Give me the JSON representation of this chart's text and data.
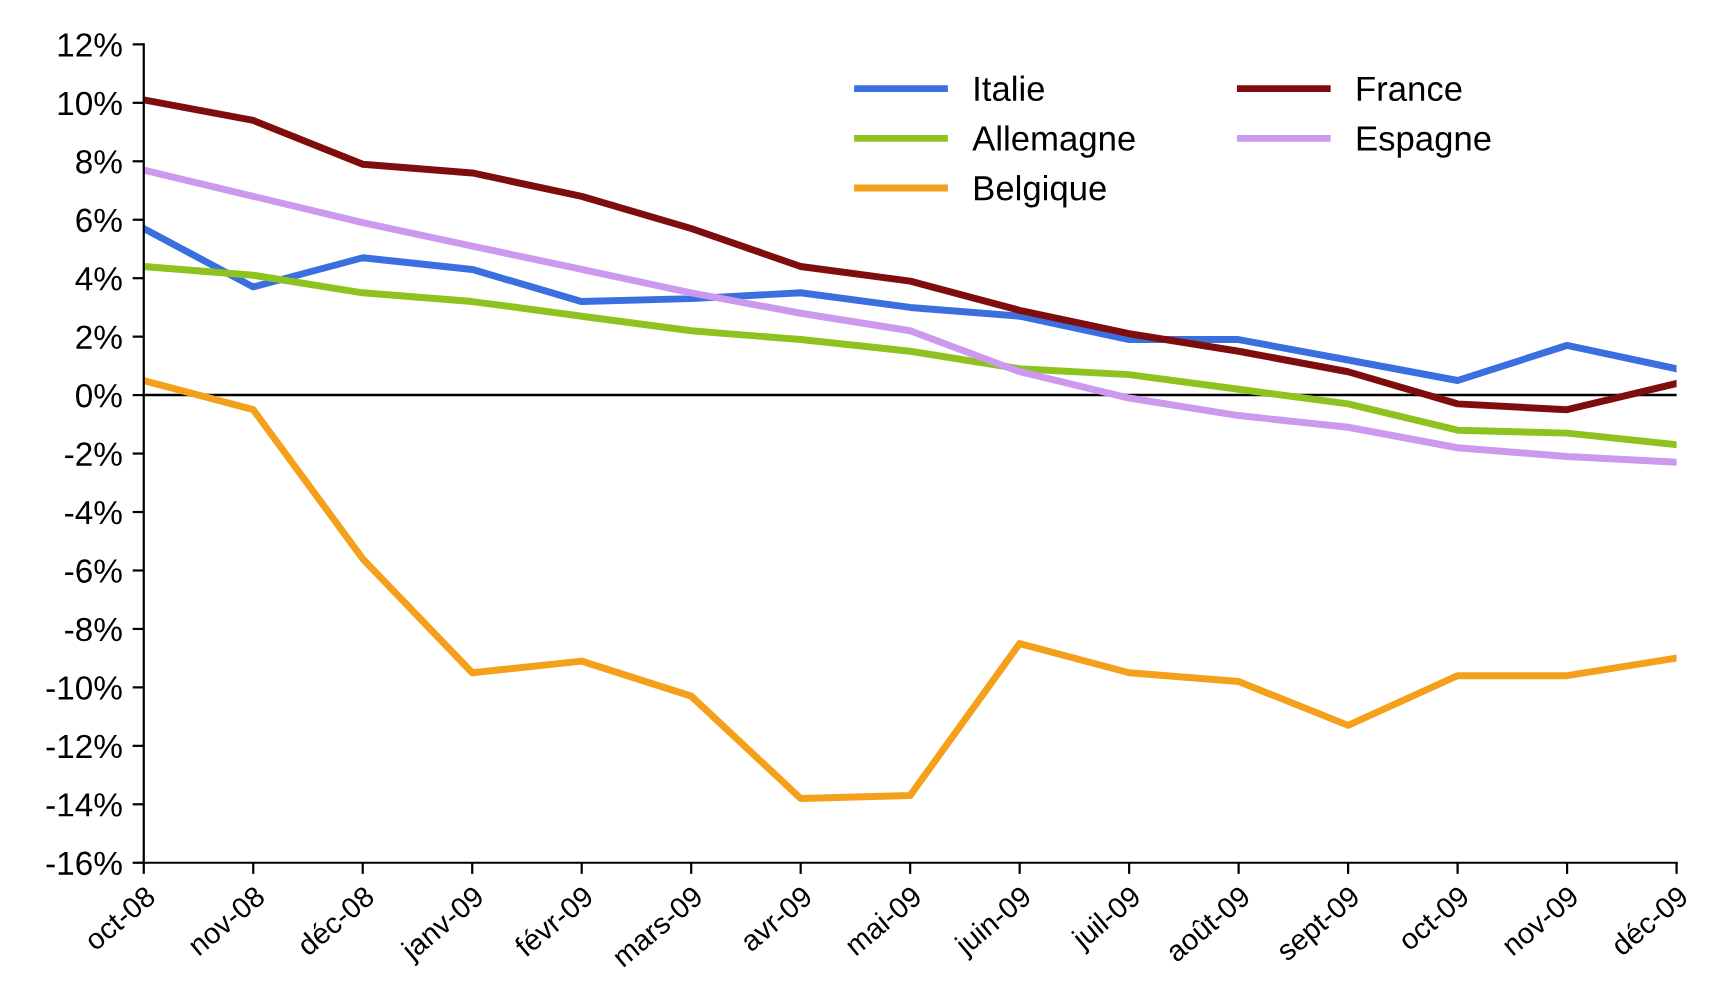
{
  "chart_data": {
    "type": "line",
    "categories": [
      "oct-08",
      "nov-08",
      "déc-08",
      "janv-09",
      "févr-09",
      "mars-09",
      "avr-09",
      "mai-09",
      "juin-09",
      "juil-09",
      "août-09",
      "sept-09",
      "oct-09",
      "nov-09",
      "déc-09"
    ],
    "series": [
      {
        "name": "Italie",
        "color": "#3a6fe0",
        "values": [
          5.7,
          3.7,
          4.7,
          4.3,
          3.2,
          3.3,
          3.5,
          3.0,
          2.7,
          1.9,
          1.9,
          1.2,
          0.5,
          1.7,
          0.9
        ]
      },
      {
        "name": "France",
        "color": "#7f0d0d",
        "values": [
          10.1,
          9.4,
          7.9,
          7.6,
          6.8,
          5.7,
          4.4,
          3.9,
          2.9,
          2.1,
          1.5,
          0.8,
          -0.3,
          -0.5,
          0.4
        ]
      },
      {
        "name": "Allemagne",
        "color": "#8dc21f",
        "values": [
          4.4,
          4.1,
          3.5,
          3.2,
          2.7,
          2.2,
          1.9,
          1.5,
          0.9,
          0.7,
          0.2,
          -0.3,
          -1.2,
          -1.3,
          -1.7
        ]
      },
      {
        "name": "Espagne",
        "color": "#cc99ee",
        "values": [
          7.7,
          6.8,
          5.9,
          5.1,
          4.3,
          3.5,
          2.8,
          2.2,
          0.8,
          -0.1,
          -0.7,
          -1.1,
          -1.8,
          -2.1,
          -2.3
        ]
      },
      {
        "name": "Belgique",
        "color": "#f5a01a",
        "values": [
          0.5,
          -0.5,
          -5.6,
          -9.5,
          -9.1,
          -10.3,
          -13.8,
          -13.7,
          -8.5,
          -9.5,
          -9.8,
          -11.3,
          -9.6,
          -9.6,
          -9.0
        ]
      }
    ],
    "ylim": [
      -16,
      12
    ],
    "yticks": [
      {
        "value": -16,
        "label": "-16%"
      },
      {
        "value": -14,
        "label": "-14%"
      },
      {
        "value": -12,
        "label": "-12%"
      },
      {
        "value": -10,
        "label": "-10%"
      },
      {
        "value": -8,
        "label": "-8%"
      },
      {
        "value": -6,
        "label": "-6%"
      },
      {
        "value": -4,
        "label": "-4%"
      },
      {
        "value": -2,
        "label": "-2%"
      },
      {
        "value": 0,
        "label": "0%"
      },
      {
        "value": 2,
        "label": "2%"
      },
      {
        "value": 4,
        "label": "4%"
      },
      {
        "value": 6,
        "label": "6%"
      },
      {
        "value": 8,
        "label": "8%"
      },
      {
        "value": 10,
        "label": "10%"
      },
      {
        "value": 12,
        "label": "12%"
      }
    ],
    "ref_lines": [
      {
        "axis": "y",
        "value": 0,
        "color": "#000000"
      }
    ],
    "grid": false,
    "legend": "top right",
    "marker": "none",
    "line_style": "solid"
  }
}
